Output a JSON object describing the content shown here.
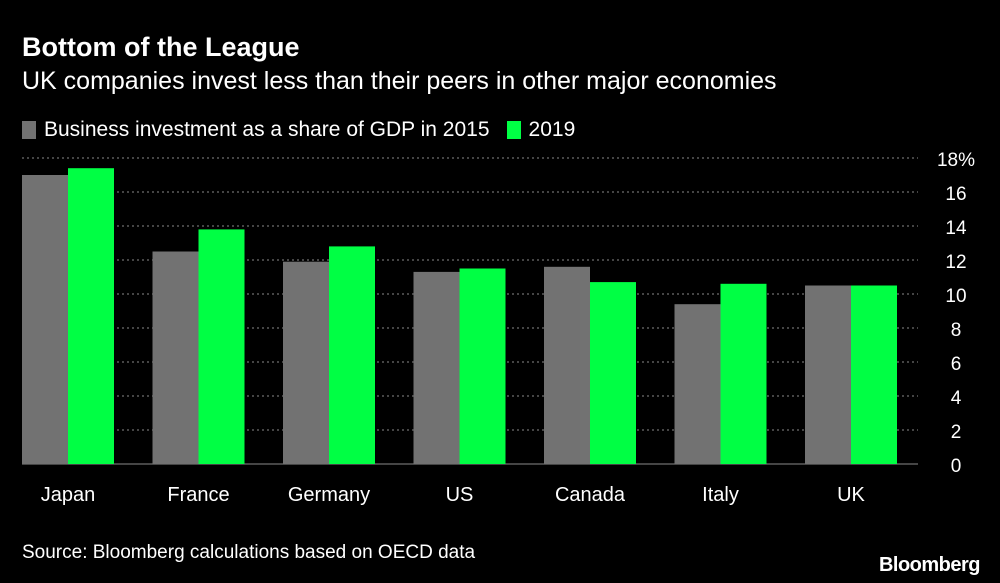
{
  "colors": {
    "background": "#000000",
    "series_2015": "#727272",
    "series_2019": "#00ff44",
    "text": "#ffffff",
    "grid": "#8a8a8a"
  },
  "chart_data": {
    "type": "bar",
    "title": "Bottom of the League",
    "subtitle": "UK companies invest less than their peers in other major economies",
    "categories": [
      "Japan",
      "France",
      "Germany",
      "US",
      "Canada",
      "Italy",
      "UK"
    ],
    "series": [
      {
        "name": "Business investment as a share of GDP in 2015",
        "values": [
          17.0,
          12.5,
          11.9,
          11.3,
          11.6,
          9.4,
          10.5
        ]
      },
      {
        "name": "2019",
        "values": [
          17.4,
          13.8,
          12.8,
          11.5,
          10.7,
          10.6,
          10.5
        ]
      }
    ],
    "xlabel": "",
    "ylabel": "",
    "ylim": [
      0,
      18
    ],
    "y_ticks": [
      "0",
      "2",
      "4",
      "6",
      "8",
      "10",
      "12",
      "14",
      "16",
      "18%"
    ],
    "grid": true,
    "legend_position": "top-left",
    "source": "Source: Bloomberg calculations based on OECD data"
  },
  "branding": "Bloomberg"
}
